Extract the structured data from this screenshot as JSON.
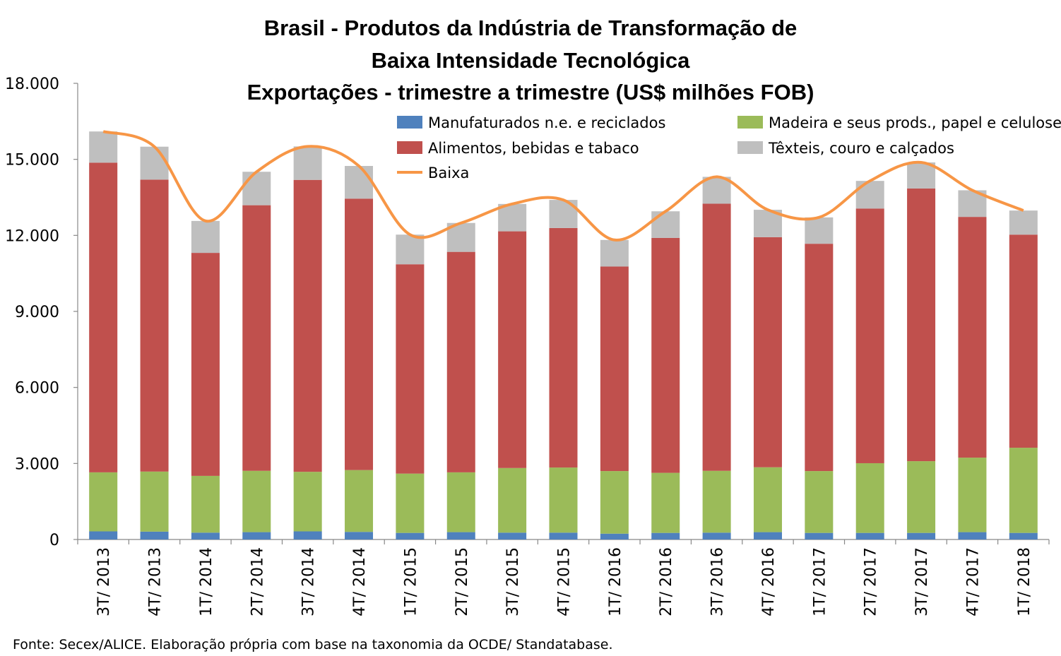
{
  "chart_data": {
    "type": "bar",
    "stacked": true,
    "title": [
      "Brasil - Produtos da Indústria de Transformação de",
      "Baixa Intensidade Tecnológica",
      "Exportações - trimestre a trimestre (US$ milhões FOB)"
    ],
    "xlabel": "",
    "ylabel": "",
    "ylim": [
      0,
      18000
    ],
    "yticks": [
      0,
      3000,
      6000,
      9000,
      12000,
      15000,
      18000
    ],
    "ytick_labels": [
      "0",
      "3.000",
      "6.000",
      "9.000",
      "12.000",
      "15.000",
      "18.000"
    ],
    "categories": [
      "3T/ 2013",
      "4T/ 2013",
      "1T/ 2014",
      "2T/ 2014",
      "3T/ 2014",
      "4T/ 2014",
      "1T/ 2015",
      "2T/ 2015",
      "3T/ 2015",
      "4T/ 2015",
      "1T/ 2016",
      "2T/ 2016",
      "3T/ 2016",
      "4T/ 2016",
      "1T/ 2017",
      "2T/ 2017",
      "3T/ 2017",
      "4T/ 2017",
      "1T/ 2018"
    ],
    "series": [
      {
        "name": "Manufaturados n.e. e reciclados",
        "color": "#4f81bd",
        "values": [
          320,
          310,
          270,
          290,
          320,
          300,
          260,
          290,
          270,
          270,
          230,
          260,
          270,
          290,
          260,
          260,
          260,
          290,
          260
        ]
      },
      {
        "name": "Madeira e seus prods., papel e celulose",
        "color": "#9bbb59",
        "values": [
          2330,
          2370,
          2240,
          2420,
          2350,
          2440,
          2340,
          2360,
          2550,
          2570,
          2470,
          2370,
          2440,
          2560,
          2440,
          2750,
          2830,
          2940,
          3360
        ]
      },
      {
        "name": "Alimentos, bebidas e tabaco",
        "color": "#c0504d",
        "values": [
          12220,
          11520,
          8800,
          10480,
          11520,
          10710,
          8260,
          8700,
          9340,
          9450,
          8070,
          9270,
          10540,
          9080,
          8970,
          10050,
          10760,
          9500,
          8410
        ]
      },
      {
        "name": "Têxteis, couro e calçados",
        "color": "#bfbfbf",
        "values": [
          1230,
          1300,
          1260,
          1320,
          1320,
          1290,
          1170,
          1140,
          1080,
          1110,
          1050,
          1050,
          1060,
          1080,
          1040,
          1090,
          1030,
          1050,
          950
        ]
      }
    ],
    "line": {
      "name": "Baixa",
      "color": "#f79646",
      "values": [
        16100,
        15500,
        12570,
        14510,
        15510,
        14740,
        12030,
        12490,
        13240,
        13400,
        11820,
        12950,
        14310,
        13010,
        12710,
        14150,
        14880,
        13780,
        12980
      ]
    },
    "legend_position": "top-right",
    "grid": false
  },
  "source_note": "Fonte: Secex/ALICE. Elaboração própria com base na taxonomia da OCDE/ Standatabase."
}
